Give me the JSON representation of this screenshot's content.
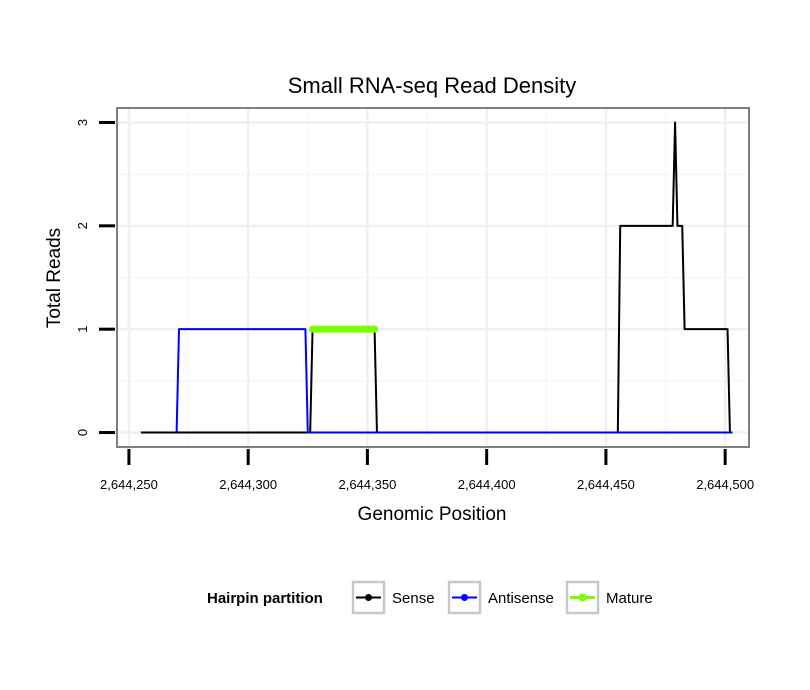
{
  "chart_data": {
    "type": "line",
    "title": "Small RNA-seq Read Density",
    "xlabel": "Genomic Position",
    "ylabel": "Total Reads",
    "xlim": [
      2644245,
      2644510
    ],
    "ylim": [
      -0.14,
      3.14
    ],
    "x_ticks": [
      2644250,
      2644300,
      2644350,
      2644400,
      2644450,
      2644500
    ],
    "x_tick_labels": [
      "2,644,250",
      "2,644,300",
      "2,644,350",
      "2,644,400",
      "2,644,450",
      "2,644,500"
    ],
    "y_ticks": [
      0,
      1,
      2,
      3
    ],
    "y_tick_labels": [
      "0",
      "1",
      "2",
      "3"
    ],
    "grid": true,
    "legend": {
      "title": "Hairpin partition",
      "position": "bottom",
      "entries": [
        "Sense",
        "Antisense",
        "Mature"
      ]
    },
    "series": [
      {
        "name": "Sense",
        "color": "#000000",
        "points": [
          [
            2644255,
            0
          ],
          [
            2644326,
            0
          ],
          [
            2644327,
            1
          ],
          [
            2644353,
            1
          ],
          [
            2644354,
            0
          ],
          [
            2644455,
            0
          ],
          [
            2644456,
            2
          ],
          [
            2644478,
            2
          ],
          [
            2644479,
            3
          ],
          [
            2644480,
            2
          ],
          [
            2644482,
            2
          ],
          [
            2644483,
            1
          ],
          [
            2644501,
            1
          ],
          [
            2644502,
            0
          ],
          [
            2644503,
            0
          ]
        ]
      },
      {
        "name": "Antisense",
        "color": "#0000ff",
        "points": [
          [
            2644270,
            0
          ],
          [
            2644271,
            1
          ],
          [
            2644324,
            1
          ],
          [
            2644325,
            0
          ],
          [
            2644503,
            0
          ]
        ]
      },
      {
        "name": "Mature",
        "color": "#7cfc00",
        "points": [
          [
            2644327,
            1
          ],
          [
            2644353,
            1
          ]
        ]
      }
    ]
  }
}
